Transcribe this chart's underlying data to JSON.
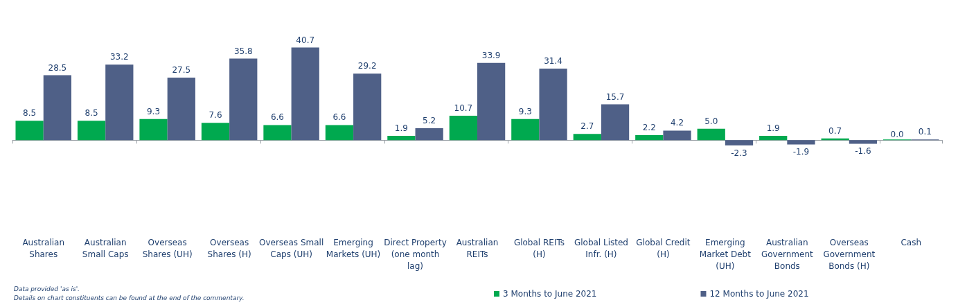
{
  "chart_data": {
    "type": "bar",
    "categories": [
      "Australian\nShares",
      "Australian\nSmall Caps",
      "Overseas\nShares (UH)",
      "Overseas\nShares (H)",
      "Overseas Small\nCaps (UH)",
      "Emerging\nMarkets (UH)",
      "Direct Property\n(one month\nlag)",
      "Australian\nREITs",
      "Global REITs\n(H)",
      "Global Listed\nInfr. (H)",
      "Global Credit\n(H)",
      "Emerging\nMarket Debt\n(UH)",
      "Australian\nGovernment\nBonds",
      "Overseas\nGovernment\nBonds (H)",
      "Cash"
    ],
    "series": [
      {
        "name": "3 Months to June 2021",
        "color": "#00a94f",
        "values": [
          8.5,
          8.5,
          9.3,
          7.6,
          6.6,
          6.6,
          1.9,
          10.7,
          9.3,
          2.7,
          2.2,
          5.0,
          1.9,
          0.7,
          0.0
        ],
        "value_labels": [
          "8.5",
          "8.5",
          "9.3",
          "7.6",
          "6.6",
          "6.6",
          "1.9",
          "10.7",
          "9.3",
          "2.7",
          "2.2",
          "5.0",
          "1.9",
          "0.7",
          "0.0"
        ]
      },
      {
        "name": "12 Months to June 2021",
        "color": "#4f6087",
        "values": [
          28.5,
          33.2,
          27.5,
          35.8,
          40.7,
          29.2,
          5.2,
          33.9,
          31.4,
          15.7,
          4.2,
          -2.3,
          -1.9,
          -1.6,
          0.1
        ],
        "value_labels": [
          "28.5",
          "33.2",
          "27.5",
          "35.8",
          "40.7",
          "29.2",
          "5.2",
          "33.9",
          "31.4",
          "15.7",
          "4.2",
          "-2.3",
          "-1.9",
          "-1.6",
          "0.1"
        ]
      }
    ],
    "legend": "bottom",
    "grid": false,
    "annotations": [
      "Data provided 'as is'.",
      "Details on chart constituents can be found at the end of the commentary."
    ]
  }
}
